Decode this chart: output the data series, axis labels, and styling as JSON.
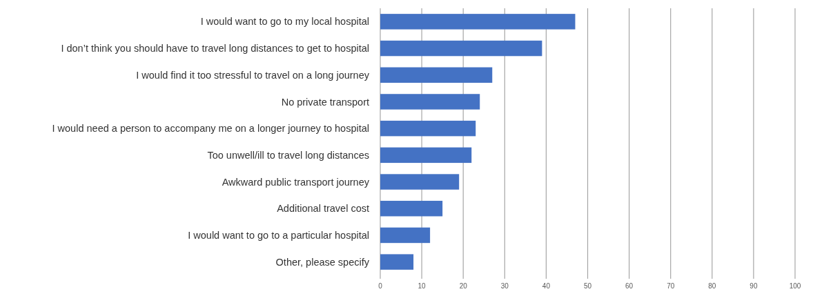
{
  "chart_data": {
    "type": "bar",
    "orientation": "horizontal",
    "categories": [
      "I would want to go to my local hospital",
      "I don’t think you should  have to travel long distances to get to hospital",
      "I would find it too stressful to travel on a long journey",
      "No private transport",
      "I would need a person to accompany me on a longer journey to hospital",
      "Too unwell/ill to travel long distances",
      "Awkward public transport journey",
      "Additional travel cost",
      "I would want to go to a particular hospital",
      "Other, please specify"
    ],
    "values": [
      47,
      39,
      27,
      24,
      23,
      22,
      19,
      15,
      12,
      8
    ],
    "color": "#4472c4",
    "xlim": [
      0,
      100
    ],
    "xticks": [
      0,
      10,
      20,
      30,
      40,
      50,
      60,
      70,
      80,
      90,
      100
    ],
    "grid": "x"
  }
}
